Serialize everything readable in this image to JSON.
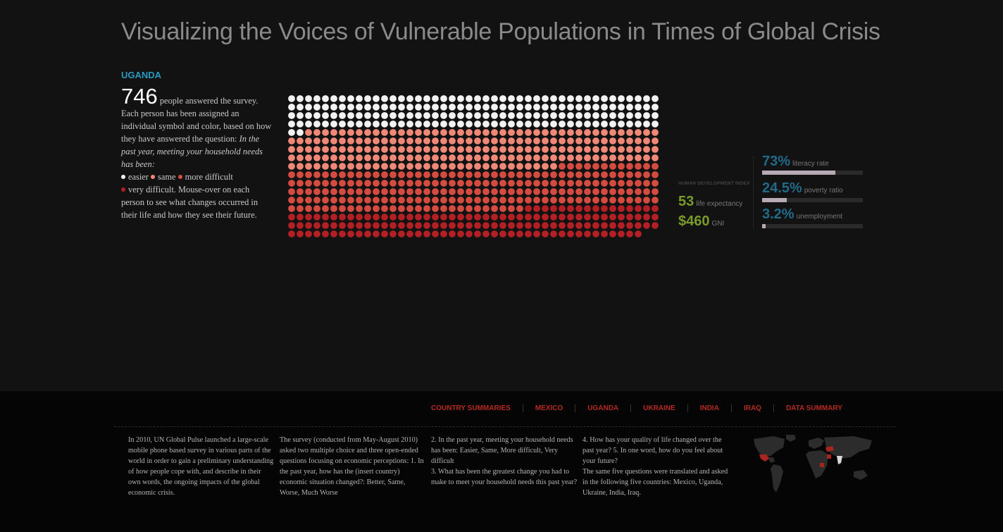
{
  "page": {
    "title": "Visualizing the Voices of Vulnerable Populations in Times of Global Crisis"
  },
  "country_panel": {
    "country": "UGANDA",
    "respondents": "746",
    "intro_after_number": " people answered the survey. Each person has been assigned an individual symbol and color, based on how they have answered the question: ",
    "question": "In the past year, meeting your household needs has been:",
    "legend": [
      {
        "label": "easier",
        "color": "#f2f2f2"
      },
      {
        "label": "same",
        "color": "#f08878"
      },
      {
        "label": "more difficult",
        "color": "#d54b3f"
      },
      {
        "label": "very difficult.",
        "color": "#b21f24"
      }
    ],
    "instruction": " Mouse-over on each person to see what changes occurred in their life and how they see their future."
  },
  "chart_data": {
    "type": "dot-matrix",
    "total": 746,
    "columns": 44,
    "categories": [
      "easier",
      "same",
      "more difficult",
      "very difficult"
    ],
    "values": [
      178,
      206,
      216,
      146
    ],
    "colors": [
      "#f2f2f2",
      "#f08878",
      "#d54b3f",
      "#b21f24"
    ]
  },
  "hdi": {
    "label": "HUMAN DEVELOPMENT INDEX",
    "life_expectancy_value": "53",
    "life_expectancy_label": "life expectancy",
    "gni_value": "$460",
    "gni_label": "GNI"
  },
  "indicators": [
    {
      "value": "73%",
      "label": "literacy rate",
      "fraction": 0.73
    },
    {
      "value": "24.5%",
      "label": "poverty ratio",
      "fraction": 0.245
    },
    {
      "value": "3.2%",
      "label": "unemployment",
      "fraction": 0.032
    }
  ],
  "nav": {
    "items": [
      "COUNTRY SUMMARIES",
      "MEXICO",
      "UGANDA",
      "UKRAINE",
      "INDIA",
      "IRAQ",
      "DATA SUMMARY"
    ]
  },
  "footer": {
    "col1": "In 2010, UN Global Pulse launched a large-scale mobile phone based survey in various parts of the world in order to gain a preliminary understanding of how people cope with, and describe in their own words, the ongoing impacts of the global economic crisis.",
    "col2": "The survey (conducted from May-August 2010) asked two multiple choice and three open-ended questions focusing on economic perceptions: 1. In the past year, how has the (insert country) economic situation changed?: Better, Same, Worse, Much Worse",
    "col3a": "2. In the past year, meeting your household needs has been: Easier, Same, More difficult, Very difficult",
    "col3b": "3. What has been the greatest change you had to make to meet your household needs this past year?",
    "col4a": "4. How has your quality of life changed over the past year? 5. In one word, how do you feel about your future?",
    "col4b": "The same five questions were translated and asked in the following five countries: Mexico, Uganda, Ukraine, India, Iraq."
  },
  "colors": {
    "accent_blue": "#2a9bc0",
    "hdi_green": "#7a9a2a",
    "indicator_blue": "#216a8a",
    "nav_red": "#b52a22"
  }
}
